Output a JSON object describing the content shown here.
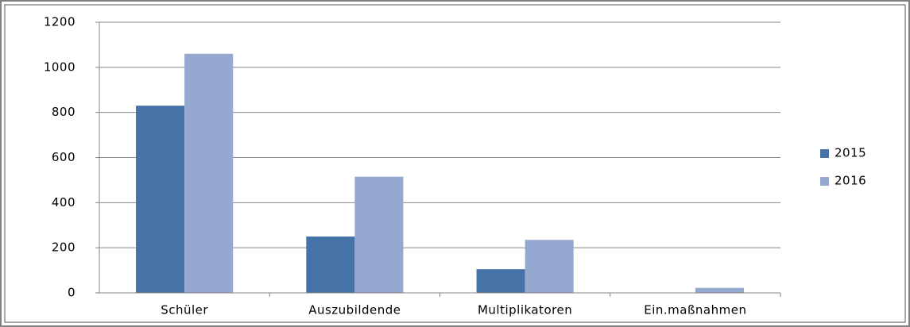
{
  "chart_data": {
    "type": "bar",
    "categories": [
      "Schüler",
      "Auszubildende",
      "Multiplikatoren",
      "Ein.maßnahmen"
    ],
    "series": [
      {
        "name": "2015",
        "color": "#4572a7",
        "values": [
          830,
          250,
          105,
          0
        ]
      },
      {
        "name": "2016",
        "color": "#95a9d0",
        "values": [
          1060,
          515,
          235,
          22
        ]
      }
    ],
    "ylim": [
      0,
      1200
    ],
    "yticks": [
      0,
      200,
      400,
      600,
      800,
      1000,
      1200
    ],
    "grid": true,
    "legend": "right"
  }
}
